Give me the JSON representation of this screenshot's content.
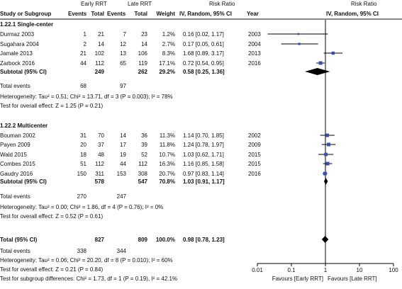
{
  "headers": {
    "group_early": "Early RRT",
    "group_late": "Late RRT",
    "rr_left": "Risk Ratio",
    "rr_right": "Risk Ratio",
    "study": "Study or Subgroup",
    "events_early": "Events",
    "total_early": "Total",
    "events_late": "Events",
    "total_late": "Total",
    "weight": "Weight",
    "method_left": "IV, Random, 95% CI",
    "year": "Year",
    "method_right": "IV, Random, 95% CI"
  },
  "subgroups": [
    {
      "label": "1.22.1 Single-center",
      "studies": [
        {
          "name": "Durmaz 2003",
          "e1": "1",
          "n1": "21",
          "e2": "7",
          "n2": "23",
          "weight": "1.2%",
          "ci_text": "0.16 [0.02, 1.17]",
          "year": "2003",
          "rr": 0.16,
          "lo": 0.02,
          "hi": 1.17,
          "w": 1.2
        },
        {
          "name": "Sugahara 2004",
          "e1": "2",
          "n1": "14",
          "e2": "12",
          "n2": "14",
          "weight": "2.7%",
          "ci_text": "0.17 [0.05, 0.61]",
          "year": "2004",
          "rr": 0.17,
          "lo": 0.05,
          "hi": 0.61,
          "w": 2.7
        },
        {
          "name": "Jamale 2013",
          "e1": "21",
          "n1": "102",
          "e2": "13",
          "n2": "106",
          "weight": "8.3%",
          "ci_text": "1.68 [0.89, 3.17]",
          "year": "2013",
          "rr": 1.68,
          "lo": 0.89,
          "hi": 3.17,
          "w": 8.3
        },
        {
          "name": "Zarbock 2016",
          "e1": "44",
          "n1": "112",
          "e2": "65",
          "n2": "119",
          "weight": "17.1%",
          "ci_text": "0.72 [0.54, 0.95]",
          "year": "2016",
          "rr": 0.72,
          "lo": 0.54,
          "hi": 0.95,
          "w": 17.1
        }
      ],
      "subtotal": {
        "label": "Subtotal (95% CI)",
        "n1": "249",
        "n2": "262",
        "weight": "29.2%",
        "ci_text": "0.58 [0.25, 1.36]",
        "rr": 0.58,
        "lo": 0.25,
        "hi": 1.36
      },
      "total_events": {
        "label": "Total events",
        "e1": "68",
        "e2": "97"
      },
      "heterogeneity": "Heterogeneity: Tau² = 0.51; Chi² = 13.71, df = 3 (P = 0.003); I² = 78%",
      "overall_effect": "Test for overall effect: Z = 1.25 (P = 0.21)"
    },
    {
      "label": "1.22.2 Multicenter",
      "studies": [
        {
          "name": "Bouman 2002",
          "e1": "31",
          "n1": "70",
          "e2": "14",
          "n2": "36",
          "weight": "11.3%",
          "ci_text": "1.14 [0.70, 1.85]",
          "year": "2002",
          "rr": 1.14,
          "lo": 0.7,
          "hi": 1.85,
          "w": 11.3
        },
        {
          "name": "Payen 2009",
          "e1": "20",
          "n1": "37",
          "e2": "17",
          "n2": "39",
          "weight": "11.8%",
          "ci_text": "1.24 [0.78, 1.97]",
          "year": "2009",
          "rr": 1.24,
          "lo": 0.78,
          "hi": 1.97,
          "w": 11.8
        },
        {
          "name": "Wald 2015",
          "e1": "18",
          "n1": "48",
          "e2": "19",
          "n2": "52",
          "weight": "10.7%",
          "ci_text": "1.03 [0.62, 1.71]",
          "year": "2015",
          "rr": 1.03,
          "lo": 0.62,
          "hi": 1.71,
          "w": 10.7
        },
        {
          "name": "Combes 2015",
          "e1": "51",
          "n1": "112",
          "e2": "44",
          "n2": "112",
          "weight": "16.3%",
          "ci_text": "1.16 [0.85, 1.58]",
          "year": "2015",
          "rr": 1.16,
          "lo": 0.85,
          "hi": 1.58,
          "w": 16.3
        },
        {
          "name": "Gaudry 2016",
          "e1": "150",
          "n1": "311",
          "e2": "153",
          "n2": "308",
          "weight": "20.7%",
          "ci_text": "0.97 [0.83, 1.14]",
          "year": "2016",
          "rr": 0.97,
          "lo": 0.83,
          "hi": 1.14,
          "w": 20.7
        }
      ],
      "subtotal": {
        "label": "Subtotal (95% CI)",
        "n1": "578",
        "n2": "547",
        "weight": "70.8%",
        "ci_text": "1.03 [0.91, 1.17]",
        "rr": 1.03,
        "lo": 0.91,
        "hi": 1.17
      },
      "total_events": {
        "label": "Total events",
        "e1": "270",
        "e2": "247"
      },
      "heterogeneity": "Heterogeneity: Tau² = 0.00; Chi² = 1.86, df = 4 (P = 0.76); I² = 0%",
      "overall_effect": "Test for overall effect: Z = 0.52 (P = 0.61)"
    }
  ],
  "overall": {
    "label": "Total (95% CI)",
    "n1": "827",
    "n2": "809",
    "weight": "100.0%",
    "ci_text": "0.98 [0.78, 1.23]",
    "rr": 0.98,
    "lo": 0.78,
    "hi": 1.23
  },
  "overall_events": {
    "label": "Total events",
    "e1": "338",
    "e2": "344"
  },
  "overall_heterogeneity": "Heterogeneity: Tau² = 0.06; Chi² = 20.20, df = 8 (P = 0.010); I² = 60%",
  "overall_effect": "Test for overall effect: Z = 0.21 (P = 0.84)",
  "subgroup_differences": "Test for subgroup differences: Chi² = 1.73, df = 1 (P = 0.19), I² = 42.1%",
  "axis": {
    "ticks": [
      "0.01",
      "0.1",
      "1",
      "10",
      "100"
    ],
    "left_label": "Favours [Early RRT]",
    "right_label": "Favours [Late RRT]"
  },
  "colors": {
    "study_marker": "#3a4fa8",
    "summary_marker": "#000000",
    "line": "#000000"
  },
  "chart_data": {
    "type": "forest",
    "scale": "log",
    "xlim": [
      0.01,
      100
    ],
    "null_line": 1,
    "x_ticks": [
      0.01,
      0.1,
      1,
      10,
      100
    ]
  }
}
